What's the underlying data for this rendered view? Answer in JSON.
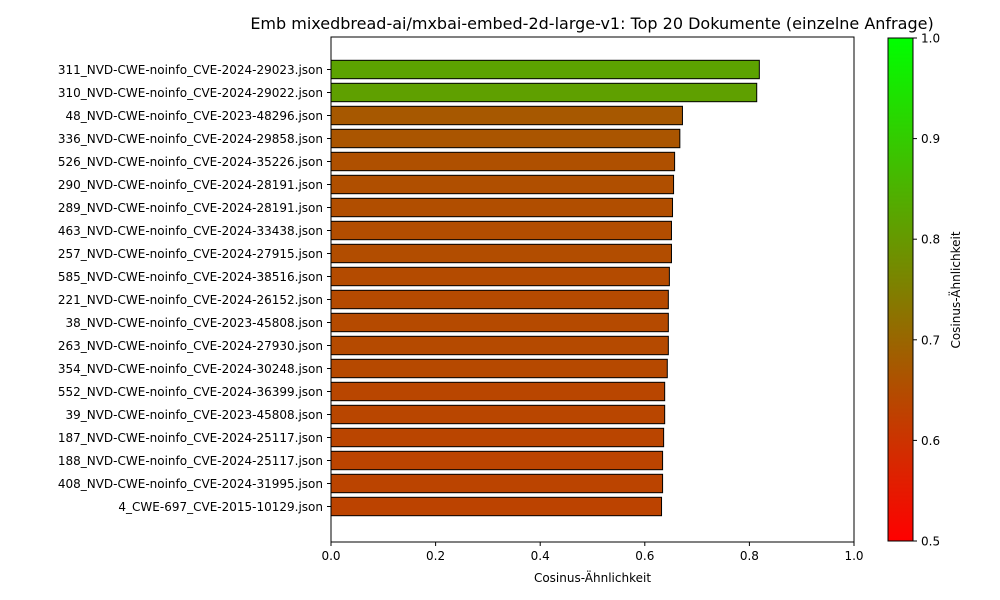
{
  "chart_data": {
    "type": "bar",
    "orientation": "horizontal",
    "title": "Emb mixedbread-ai/mxbai-embed-2d-large-v1: Top 20 Dokumente (einzelne Anfrage)",
    "xlabel": "Cosinus-Ähnlichkeit",
    "ylabel": "",
    "xlim": [
      0,
      1.0
    ],
    "xticks": [
      "0.0",
      "0.2",
      "0.4",
      "0.6",
      "0.8",
      "1.0"
    ],
    "categories": [
      "311_NVD-CWE-noinfo_CVE-2024-29023.json",
      "310_NVD-CWE-noinfo_CVE-2024-29022.json",
      "48_NVD-CWE-noinfo_CVE-2023-48296.json",
      "336_NVD-CWE-noinfo_CVE-2024-29858.json",
      "526_NVD-CWE-noinfo_CVE-2024-35226.json",
      "290_NVD-CWE-noinfo_CVE-2024-28191.json",
      "289_NVD-CWE-noinfo_CVE-2024-28191.json",
      "463_NVD-CWE-noinfo_CVE-2024-33438.json",
      "257_NVD-CWE-noinfo_CVE-2024-27915.json",
      "585_NVD-CWE-noinfo_CVE-2024-38516.json",
      "221_NVD-CWE-noinfo_CVE-2024-26152.json",
      "38_NVD-CWE-noinfo_CVE-2023-45808.json",
      "263_NVD-CWE-noinfo_CVE-2024-27930.json",
      "354_NVD-CWE-noinfo_CVE-2024-30248.json",
      "552_NVD-CWE-noinfo_CVE-2024-36399.json",
      "39_NVD-CWE-noinfo_CVE-2023-45808.json",
      "187_NVD-CWE-noinfo_CVE-2024-25117.json",
      "188_NVD-CWE-noinfo_CVE-2024-25117.json",
      "408_NVD-CWE-noinfo_CVE-2024-31995.json",
      "4_CWE-697_CVE-2015-10129.json"
    ],
    "values": [
      0.819,
      0.814,
      0.672,
      0.667,
      0.657,
      0.655,
      0.653,
      0.651,
      0.651,
      0.647,
      0.645,
      0.645,
      0.645,
      0.643,
      0.638,
      0.638,
      0.636,
      0.634,
      0.634,
      0.632
    ],
    "colorbar": {
      "label": "Cosinus-Ähnlichkeit",
      "range": [
        0.5,
        1.0
      ],
      "ticks": [
        "0.5",
        "0.6",
        "0.7",
        "0.8",
        "0.9",
        "1.0"
      ],
      "color_low": "#ff0000",
      "color_high": "#00ff00"
    },
    "bar_edge_color": "#000000",
    "grid": false,
    "legend": "none"
  }
}
